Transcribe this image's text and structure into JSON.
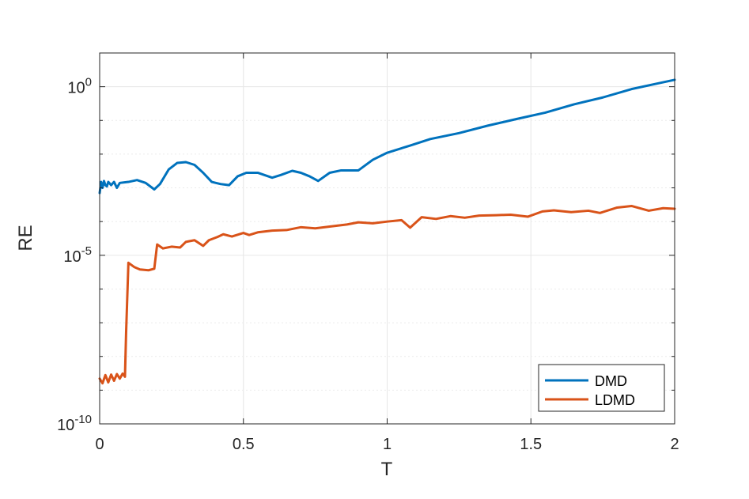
{
  "chart_data": {
    "type": "line",
    "title": "",
    "xlabel": "T",
    "ylabel": "RE",
    "xlim": [
      0,
      2
    ],
    "ylim": [
      1e-10,
      10
    ],
    "y_scale": "log",
    "grid": true,
    "legend_position": "bottom-right",
    "x_ticks": [
      "0",
      "0.5",
      "1",
      "1.5",
      "2"
    ],
    "x_tick_values": [
      0,
      0.5,
      1,
      1.5,
      2
    ],
    "y_ticks": [
      {
        "value": 1,
        "base": "10",
        "exp": "0"
      },
      {
        "value": 1e-05,
        "base": "10",
        "exp": "-5"
      },
      {
        "value": 1e-10,
        "base": "10",
        "exp": "-10"
      }
    ],
    "series": [
      {
        "name": "DMD",
        "color": "#0072BD",
        "x": [
          0.0,
          0.005,
          0.01,
          0.015,
          0.02,
          0.025,
          0.03,
          0.04,
          0.05,
          0.06,
          0.07,
          0.1,
          0.13,
          0.16,
          0.19,
          0.21,
          0.24,
          0.27,
          0.3,
          0.33,
          0.36,
          0.39,
          0.42,
          0.45,
          0.48,
          0.51,
          0.55,
          0.6,
          0.63,
          0.67,
          0.7,
          0.73,
          0.76,
          0.8,
          0.84,
          0.9,
          0.95,
          1.0,
          1.08,
          1.15,
          1.25,
          1.35,
          1.45,
          1.55,
          1.65,
          1.75,
          1.85,
          1.95,
          2.0
        ],
        "y": [
          0.0007,
          0.0015,
          0.001,
          0.0016,
          0.0012,
          0.0011,
          0.0015,
          0.0012,
          0.0015,
          0.001,
          0.0014,
          0.0015,
          0.0017,
          0.0014,
          0.0009,
          0.0013,
          0.0035,
          0.0055,
          0.0058,
          0.0048,
          0.0028,
          0.0015,
          0.0013,
          0.0012,
          0.0022,
          0.0028,
          0.0028,
          0.002,
          0.0024,
          0.0032,
          0.0028,
          0.0022,
          0.0016,
          0.0028,
          0.0033,
          0.0033,
          0.0068,
          0.011,
          0.018,
          0.028,
          0.042,
          0.07,
          0.11,
          0.17,
          0.3,
          0.48,
          0.85,
          1.3,
          1.6
        ]
      },
      {
        "name": "LDMD",
        "color": "#D95319",
        "x": [
          0.0,
          0.01,
          0.02,
          0.03,
          0.04,
          0.05,
          0.06,
          0.07,
          0.08,
          0.088,
          0.092,
          0.1,
          0.12,
          0.14,
          0.17,
          0.19,
          0.2,
          0.22,
          0.25,
          0.28,
          0.3,
          0.31,
          0.33,
          0.36,
          0.38,
          0.41,
          0.43,
          0.46,
          0.5,
          0.52,
          0.55,
          0.6,
          0.65,
          0.7,
          0.75,
          0.8,
          0.86,
          0.9,
          0.95,
          1.0,
          1.05,
          1.08,
          1.12,
          1.17,
          1.22,
          1.27,
          1.32,
          1.38,
          1.43,
          1.49,
          1.54,
          1.58,
          1.64,
          1.7,
          1.74,
          1.8,
          1.85,
          1.91,
          1.96,
          2.0
        ],
        "y": [
          2.2e-09,
          1.6e-09,
          2.8e-09,
          1.7e-09,
          2.9e-09,
          1.9e-09,
          3e-09,
          2.2e-09,
          3.1e-09,
          2.5e-09,
          5e-08,
          6e-06,
          4.5e-06,
          3.8e-06,
          3.6e-06,
          4e-06,
          2.1e-05,
          1.6e-05,
          1.8e-05,
          1.7e-05,
          2.5e-05,
          2.6e-05,
          2.8e-05,
          1.9e-05,
          2.8e-05,
          3.5e-05,
          4.2e-05,
          3.6e-05,
          4.6e-05,
          4e-05,
          4.8e-05,
          5.4e-05,
          5.6e-05,
          6.8e-05,
          6.3e-05,
          7.1e-05,
          8.2e-05,
          9.5e-05,
          8.9e-05,
          0.0001,
          0.00011,
          6.6e-05,
          0.000135,
          0.00012,
          0.000145,
          0.00013,
          0.00015,
          0.000155,
          0.00016,
          0.00014,
          0.0002,
          0.000215,
          0.00019,
          0.00021,
          0.00018,
          0.00026,
          0.00029,
          0.00021,
          0.00025,
          0.00024
        ]
      }
    ]
  }
}
